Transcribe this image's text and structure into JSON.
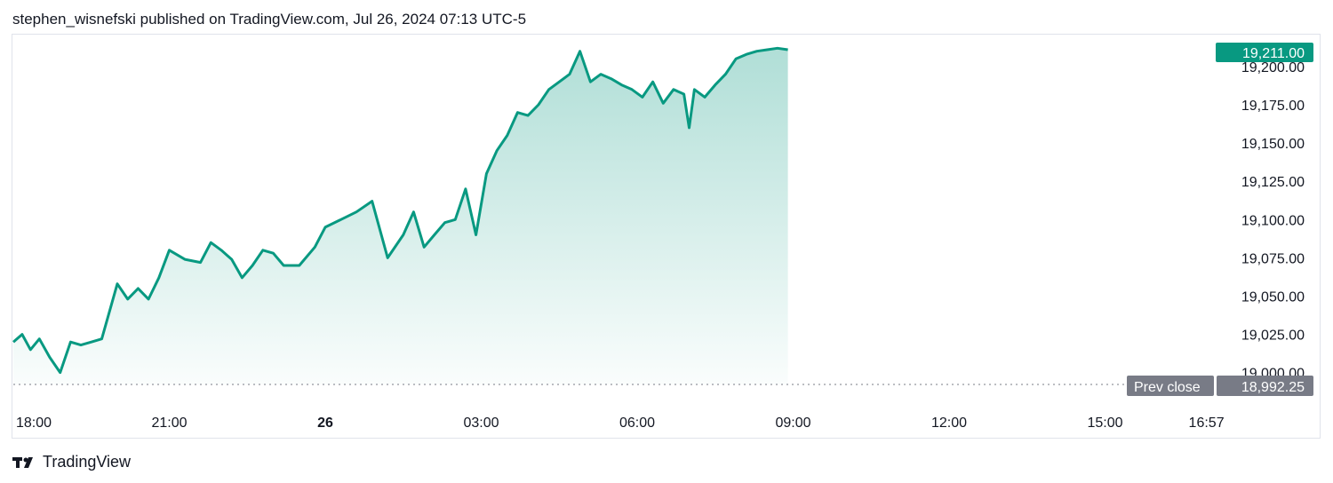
{
  "header": {
    "text": "stephen_wisnefski published on TradingView.com, Jul 26, 2024 07:13 UTC-5"
  },
  "footer": {
    "brand": "TradingView",
    "logo_icon": "tradingview-logo-icon"
  },
  "colors": {
    "line": "#089981",
    "area_top": "#089981",
    "text": "#131722",
    "grid": "#e0e3eb",
    "prev_close_badge": "#787b86"
  },
  "chart_data": {
    "type": "area",
    "title": "",
    "xlabel": "",
    "ylabel": "",
    "ylim": [
      18992.25,
      19211.0
    ],
    "y_ticks": [
      "19,200.00",
      "19,175.00",
      "19,150.00",
      "19,125.00",
      "19,100.00",
      "19,075.00",
      "19,050.00",
      "19,025.00",
      "19,000.00"
    ],
    "x_ticks": [
      {
        "label": "18:00",
        "bold": false
      },
      {
        "label": "21:00",
        "bold": false
      },
      {
        "label": "26",
        "bold": true
      },
      {
        "label": "03:00",
        "bold": false
      },
      {
        "label": "06:00",
        "bold": false
      },
      {
        "label": "09:00",
        "bold": false
      },
      {
        "label": "12:00",
        "bold": false
      },
      {
        "label": "15:00",
        "bold": false
      },
      {
        "label": "16:57",
        "bold": false
      }
    ],
    "last_price": "19,211.00",
    "prev_close": {
      "label": "Prev close",
      "value": "18,992.25",
      "y": 18992.25
    },
    "series": [
      {
        "x_hours": [
          0,
          0.17,
          0.33,
          0.5,
          0.7,
          0.9,
          1.1,
          1.3,
          1.5,
          1.7,
          2,
          2.2,
          2.4,
          2.6,
          2.8,
          3,
          3.3,
          3.6,
          3.8,
          4,
          4.2,
          4.4,
          4.6,
          4.8,
          5,
          5.2,
          5.5,
          5.8,
          6,
          6.3,
          6.6,
          6.9,
          7.2,
          7.5,
          7.7,
          7.9,
          8.1,
          8.3,
          8.5,
          8.7,
          8.9,
          9.1,
          9.3,
          9.5,
          9.7,
          9.9,
          10.1,
          10.3,
          10.5,
          10.7,
          10.9,
          11.1,
          11.3,
          11.5,
          11.7,
          11.9,
          12.1,
          12.3,
          12.5,
          12.7,
          12.9,
          13,
          13.1,
          13.3,
          13.5,
          13.7,
          13.9,
          14.1,
          14.3,
          14.5,
          14.7,
          14.9
        ],
        "values": [
          19020,
          19025,
          19015,
          19022,
          19010,
          19000,
          19020,
          19018,
          19020,
          19022,
          19058,
          19048,
          19055,
          19048,
          19062,
          19080,
          19074,
          19072,
          19085,
          19080,
          19074,
          19062,
          19070,
          19080,
          19078,
          19070,
          19070,
          19082,
          19095,
          19100,
          19105,
          19112,
          19075,
          19090,
          19105,
          19082,
          19090,
          19098,
          19100,
          19120,
          19090,
          19130,
          19145,
          19155,
          19170,
          19168,
          19175,
          19185,
          19190,
          19195,
          19210,
          19190,
          19195,
          19192,
          19188,
          19185,
          19180,
          19190,
          19176,
          19185,
          19182,
          19160,
          19185,
          19180,
          19188,
          19195,
          19205,
          19208,
          19210,
          19211,
          19212,
          19211
        ]
      }
    ]
  }
}
